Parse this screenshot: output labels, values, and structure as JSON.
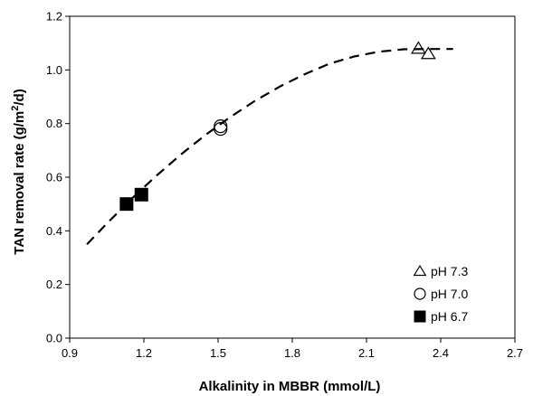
{
  "chart_data": {
    "type": "scatter",
    "xlabel": "Alkalinity in MBBR (mmol/L)",
    "ylabel_main": "TAN removal rate (g/m",
    "ylabel_sup": "2",
    "ylabel_tail": "/d)",
    "xlim": [
      0.9,
      2.7
    ],
    "ylim": [
      0.0,
      1.2
    ],
    "x_ticks": [
      0.9,
      1.2,
      1.5,
      1.8,
      2.1,
      2.4,
      2.7
    ],
    "x_tick_labels": [
      "0.9",
      "1.2",
      "1.5",
      "1.8",
      "2.1",
      "2.4",
      "2.7"
    ],
    "y_ticks": [
      0.0,
      0.2,
      0.4,
      0.6,
      0.8,
      1.0,
      1.2
    ],
    "y_tick_labels": [
      "0.0",
      "0.2",
      "0.4",
      "0.6",
      "0.8",
      "1.0",
      "1.2"
    ],
    "grid": false,
    "legend_position": "bottom-right",
    "series": [
      {
        "name": "pH 7.3",
        "marker": "triangle-open",
        "points": [
          [
            2.31,
            1.08
          ],
          [
            2.35,
            1.06
          ]
        ]
      },
      {
        "name": "pH 7.0",
        "marker": "circle-open",
        "points": [
          [
            1.51,
            0.79
          ],
          [
            1.51,
            0.78
          ]
        ]
      },
      {
        "name": "pH 6.7",
        "marker": "square-filled",
        "points": [
          [
            1.13,
            0.5
          ],
          [
            1.19,
            0.535
          ]
        ]
      }
    ],
    "fit_curve": {
      "style": "dashed",
      "x": [
        0.97,
        1.05,
        1.15,
        1.25,
        1.35,
        1.45,
        1.55,
        1.65,
        1.75,
        1.85,
        1.95,
        2.05,
        2.15,
        2.25,
        2.35,
        2.45
      ],
      "y": [
        0.35,
        0.427,
        0.519,
        0.605,
        0.685,
        0.758,
        0.825,
        0.885,
        0.938,
        0.984,
        1.023,
        1.05,
        1.068,
        1.077,
        1.078,
        1.078
      ]
    }
  }
}
